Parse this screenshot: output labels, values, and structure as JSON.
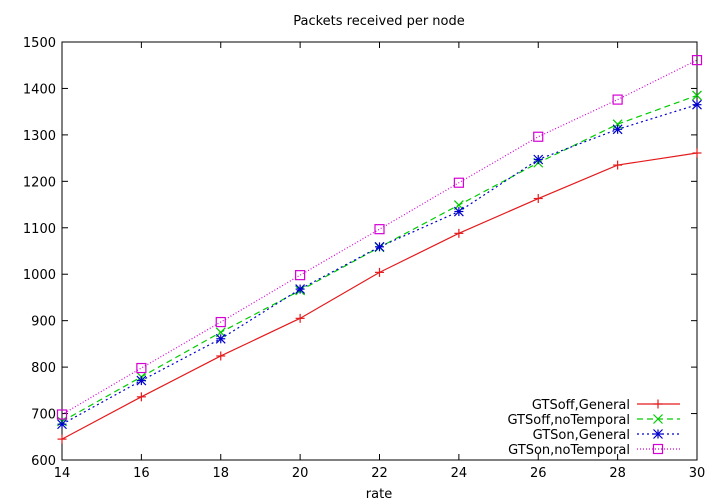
{
  "chart_data": {
    "type": "line",
    "title": "Packets received per node",
    "xlabel": "rate",
    "ylabel": "",
    "xlim": [
      14,
      30
    ],
    "ylim": [
      600,
      1500
    ],
    "x_ticks": [
      14,
      16,
      18,
      20,
      22,
      24,
      26,
      28,
      30
    ],
    "y_ticks": [
      600,
      700,
      800,
      900,
      1000,
      1100,
      1200,
      1300,
      1400,
      1500
    ],
    "grid": false,
    "legend_position": "bottom-right",
    "x": [
      14,
      16,
      18,
      20,
      22,
      24,
      26,
      28,
      30
    ],
    "series": [
      {
        "name": "GTSoff,General",
        "color": "#e41a1c",
        "marker": "plus",
        "dash": "solid",
        "values": [
          645,
          736,
          824,
          905,
          1004,
          1088,
          1163,
          1235,
          1261
        ]
      },
      {
        "name": "GTSoff,noTemporal",
        "color": "#00cc00",
        "marker": "cross",
        "dash": "dashed",
        "values": [
          683,
          779,
          875,
          965,
          1058,
          1149,
          1240,
          1323,
          1385
        ]
      },
      {
        "name": "GTSon,General",
        "color": "#0000cc",
        "marker": "star",
        "dash": "dotted",
        "values": [
          677,
          771,
          861,
          968,
          1059,
          1135,
          1247,
          1312,
          1365
        ]
      },
      {
        "name": "GTSon,noTemporal",
        "color": "#d400d4",
        "marker": "square",
        "dash": "finedotted",
        "values": [
          698,
          798,
          897,
          998,
          1097,
          1197,
          1296,
          1376,
          1461
        ]
      }
    ]
  }
}
